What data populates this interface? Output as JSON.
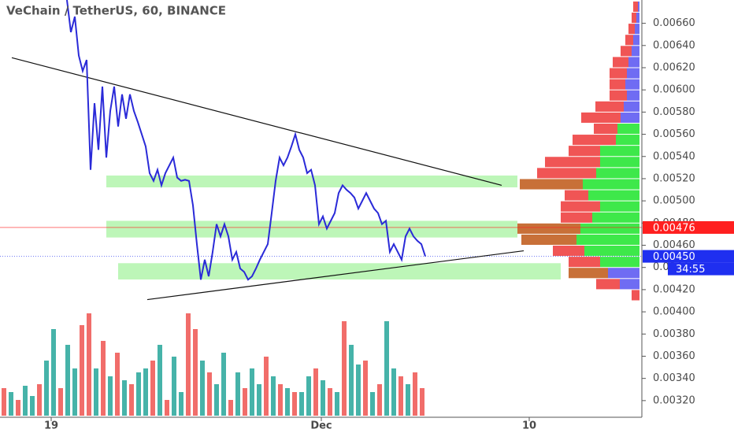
{
  "chart_data": {
    "type": "line",
    "title": "VeChain / TetherUS, 60, BINANCE",
    "x_labels": [
      "19",
      "Dec",
      "10"
    ],
    "ylim": [
      0.00305,
      0.00681
    ],
    "yticks": [
      {
        "value": 0.0032,
        "label": "0.00320"
      },
      {
        "value": 0.0034,
        "label": "0.00340"
      },
      {
        "value": 0.0036,
        "label": "0.00360"
      },
      {
        "value": 0.0038,
        "label": "0.00380"
      },
      {
        "value": 0.004,
        "label": "0.00400"
      },
      {
        "value": 0.0042,
        "label": "0.00420"
      },
      {
        "value": 0.0044,
        "label": "0.00440"
      },
      {
        "value": 0.0046,
        "label": "0.00460"
      },
      {
        "value": 0.0048,
        "label": "0.00480"
      },
      {
        "value": 0.005,
        "label": "0.00500"
      },
      {
        "value": 0.0052,
        "label": "0.00520"
      },
      {
        "value": 0.0054,
        "label": "0.00540"
      },
      {
        "value": 0.0056,
        "label": "0.00560"
      },
      {
        "value": 0.0058,
        "label": "0.00580"
      },
      {
        "value": 0.006,
        "label": "0.00600"
      },
      {
        "value": 0.0062,
        "label": "0.00620"
      },
      {
        "value": 0.0064,
        "label": "0.00640"
      },
      {
        "value": 0.0066,
        "label": "0.00660"
      }
    ],
    "series": [
      {
        "color": "#2a2ad8",
        "values": [
          0.00681,
          0.00652,
          0.00666,
          0.00631,
          0.00617,
          0.00627,
          0.00528,
          0.00588,
          0.00546,
          0.00603,
          0.00539,
          0.00581,
          0.00603,
          0.00567,
          0.00596,
          0.00574,
          0.00596,
          0.00581,
          0.00571,
          0.0056,
          0.00549,
          0.00525,
          0.00518,
          0.00528,
          0.00514,
          0.00525,
          0.00532,
          0.00539,
          0.00521,
          0.00518,
          0.00519,
          0.00518,
          0.00496,
          0.00461,
          0.00429,
          0.00447,
          0.00432,
          0.00454,
          0.00479,
          0.00468,
          0.00479,
          0.00468,
          0.00447,
          0.00454,
          0.00439,
          0.00436,
          0.00429,
          0.00432,
          0.00439,
          0.00447,
          0.00454,
          0.00461,
          0.00489,
          0.00518,
          0.00539,
          0.00532,
          0.00539,
          0.00549,
          0.0056,
          0.00546,
          0.00539,
          0.00525,
          0.00528,
          0.00514,
          0.00479,
          0.00486,
          0.00475,
          0.00482,
          0.00489,
          0.00507,
          0.00514,
          0.0051,
          0.00507,
          0.00503,
          0.00493,
          0.005,
          0.00507,
          0.005,
          0.00493,
          0.00489,
          0.00479,
          0.00482,
          0.00454,
          0.00461,
          0.00454,
          0.00447,
          0.00468,
          0.00475,
          0.00468,
          0.00464,
          0.00461,
          0.0045
        ]
      }
    ],
    "trendlines": [
      {
        "from": 0.00629,
        "to": 0.00514
      },
      {
        "from": 0.00411,
        "to": 0.00455
      }
    ],
    "zones": [
      [
        0.00515,
        0.0052
      ],
      [
        0.00467,
        0.00482
      ],
      [
        0.00432,
        0.00441
      ]
    ],
    "zone_color": "#b6f5b0",
    "price_labels": [
      {
        "value": 0.00476,
        "label": "0.00476",
        "color": "#ff1f1f"
      },
      {
        "value": 0.0045,
        "label": "0.00450",
        "color": "#1f2ff0"
      }
    ],
    "countdown": "34:55",
    "volume": {
      "values": [
        35,
        30,
        20,
        38,
        25,
        40,
        70,
        110,
        35,
        90,
        60,
        115,
        130,
        60,
        95,
        50,
        80,
        45,
        40,
        55,
        60,
        70,
        90,
        20,
        75,
        30,
        130,
        110,
        70,
        55,
        40,
        80,
        20,
        55,
        35,
        60,
        40,
        75,
        50,
        40,
        35,
        30,
        30,
        50,
        60,
        45,
        35,
        30,
        120,
        90,
        65,
        70,
        30,
        40,
        120,
        60,
        50,
        40,
        55,
        35
      ],
      "colors": [
        "#ef5350",
        "#26a69a",
        "#ef5350",
        "#26a69a",
        "#26a69a",
        "#ef5350",
        "#26a69a",
        "#26a69a",
        "#ef5350",
        "#26a69a",
        "#26a69a",
        "#ef5350",
        "#ef5350",
        "#26a69a",
        "#ef5350",
        "#26a69a",
        "#ef5350",
        "#26a69a",
        "#ef5350",
        "#26a69a",
        "#26a69a",
        "#ef5350",
        "#26a69a",
        "#ef5350",
        "#26a69a",
        "#26a69a",
        "#ef5350",
        "#ef5350",
        "#26a69a",
        "#ef5350",
        "#26a69a",
        "#26a69a",
        "#ef5350",
        "#26a69a",
        "#ef5350",
        "#26a69a",
        "#26a69a",
        "#ef5350",
        "#26a69a",
        "#ef5350",
        "#26a69a",
        "#ef5350",
        "#26a69a",
        "#26a69a",
        "#ef5350",
        "#26a69a",
        "#ef5350",
        "#26a69a",
        "#ef5350",
        "#26a69a",
        "#26a69a",
        "#ef5350",
        "#26a69a",
        "#ef5350",
        "#26a69a",
        "#26a69a",
        "#ef5350",
        "#26a69a",
        "#ef5350",
        "#ef5350"
      ]
    },
    "profile": {
      "prices": [
        0.00675,
        0.00665,
        0.00655,
        0.00645,
        0.00635,
        0.00625,
        0.00615,
        0.00605,
        0.00595,
        0.00585,
        0.00575,
        0.00565,
        0.00555,
        0.00545,
        0.00535,
        0.00525,
        0.00515,
        0.00505,
        0.00495,
        0.00485,
        0.00475,
        0.00465,
        0.00455,
        0.00445,
        0.00435,
        0.00425,
        0.00415
      ],
      "up": [
        2,
        4,
        6,
        8,
        10,
        14,
        16,
        18,
        16,
        20,
        24,
        28,
        30,
        50,
        50,
        55,
        72,
        65,
        50,
        60,
        75,
        80,
        70,
        50,
        40,
        25,
        0
      ],
      "down": [
        6,
        6,
        8,
        10,
        14,
        20,
        22,
        20,
        22,
        36,
        50,
        30,
        55,
        40,
        70,
        75,
        80,
        30,
        50,
        40,
        80,
        70,
        40,
        40,
        50,
        30,
        10
      ],
      "up_colors": [
        "#6f6cf3",
        "#6f6cf3",
        "#6f6cf3",
        "#6f6cf3",
        "#6f6cf3",
        "#6f6cf3",
        "#6f6cf3",
        "#6f6cf3",
        "#6f6cf3",
        "#6f6cf3",
        "#6f6cf3",
        "#3ee84a",
        "#3ee84a",
        "#3ee84a",
        "#3ee84a",
        "#3ee84a",
        "#3ee84a",
        "#3ee84a",
        "#3ee84a",
        "#3ee84a",
        "#3ee84a",
        "#3ee84a",
        "#3ee84a",
        "#3ee84a",
        "#6f6cf3",
        "#6f6cf3",
        "#6f6cf3"
      ],
      "down_colors": [
        "#f05555",
        "#f05555",
        "#f05555",
        "#f05555",
        "#f05555",
        "#f05555",
        "#f05555",
        "#f05555",
        "#f05555",
        "#f05555",
        "#f05555",
        "#f05555",
        "#f05555",
        "#f05555",
        "#f05555",
        "#f05555",
        "#c87038",
        "#f05555",
        "#f05555",
        "#f05555",
        "#c87038",
        "#c87038",
        "#f05555",
        "#f05555",
        "#c87038",
        "#f05555",
        "#f05555"
      ]
    }
  }
}
